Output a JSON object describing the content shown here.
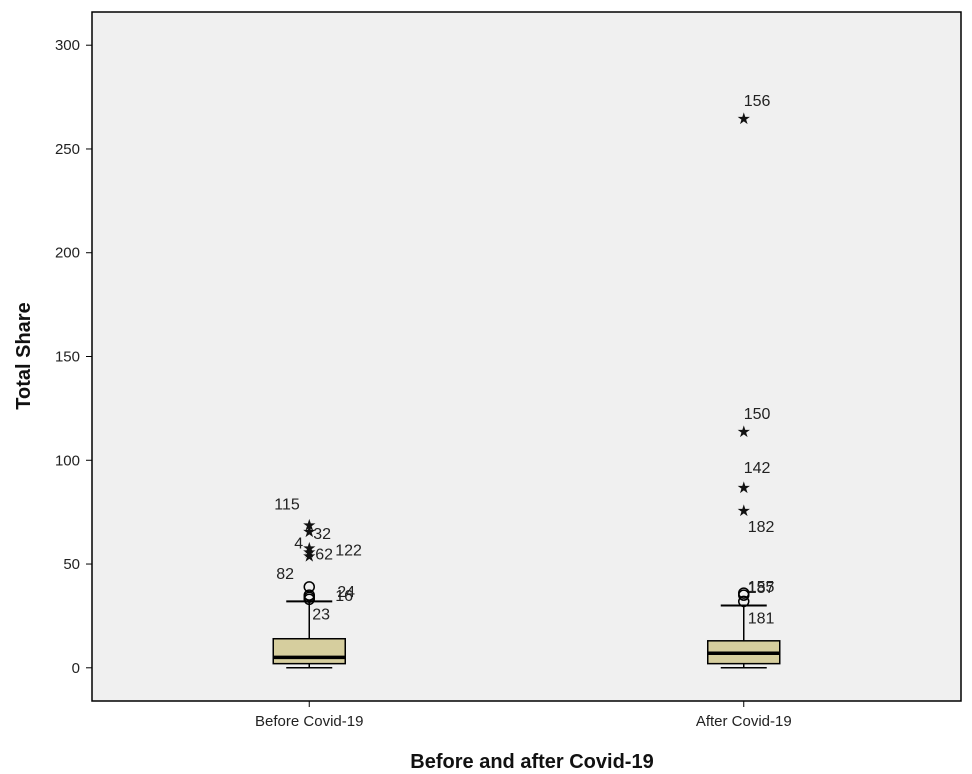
{
  "chart_data": {
    "type": "boxplot",
    "xlabel": "Before and after Covid-19",
    "ylabel": "Total Share",
    "ylim": [
      -16,
      316
    ],
    "yticks": [
      0,
      50,
      100,
      150,
      200,
      250,
      300
    ],
    "grid": false,
    "colors": {
      "plot_bg": "#f0f0f0",
      "box_fill": "#d6ce9e",
      "stroke": "#000000"
    },
    "categories": [
      "Before Covid-19",
      "After Covid-19"
    ],
    "boxes": [
      {
        "category": "Before Covid-19",
        "min": 0,
        "q1": 2,
        "median": 5,
        "q3": 14,
        "max": 32,
        "outliers": [
          {
            "label": "23",
            "value": 33,
            "marker": "circle"
          },
          {
            "label": "24",
            "value": 35,
            "marker": "circle"
          },
          {
            "label": "82",
            "value": 39,
            "marker": "circle"
          },
          {
            "label": "16",
            "value": 34,
            "marker": "circle"
          },
          {
            "label": "122",
            "value": 54,
            "marker": "star"
          },
          {
            "label": "62",
            "value": 56,
            "marker": "star"
          },
          {
            "label": "4",
            "value": 58,
            "marker": "star"
          },
          {
            "label": "32",
            "value": 66,
            "marker": "star"
          },
          {
            "label": "115",
            "value": 69,
            "marker": "star"
          }
        ]
      },
      {
        "category": "After Covid-19",
        "min": 0,
        "q1": 2,
        "median": 7,
        "q3": 13,
        "max": 30,
        "outliers": [
          {
            "label": "181",
            "value": 32,
            "marker": "circle"
          },
          {
            "label": "187",
            "value": 35,
            "marker": "circle"
          },
          {
            "label": "155",
            "value": 36,
            "marker": "circle"
          },
          {
            "label": "182",
            "value": 76,
            "marker": "star"
          },
          {
            "label": "142",
            "value": 87,
            "marker": "star"
          },
          {
            "label": "150",
            "value": 114,
            "marker": "star"
          },
          {
            "label": "156",
            "value": 265,
            "marker": "star"
          }
        ]
      }
    ]
  }
}
